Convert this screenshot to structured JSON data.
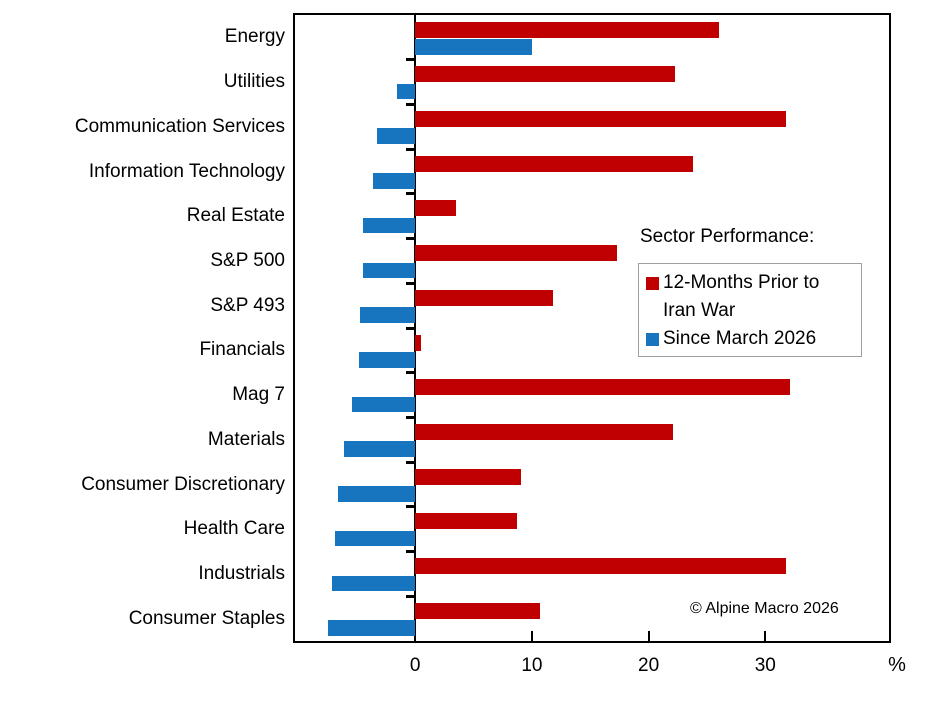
{
  "chart_data": {
    "type": "bar",
    "orientation": "horizontal",
    "categories": [
      "Energy",
      "Utilities",
      "Communication Services",
      "Information Technology",
      "Real Estate",
      "S&P 500",
      "S&P 493",
      "Financials",
      "Mag 7",
      "Materials",
      "Consumer Discretionary",
      "Health Care",
      "Industrials",
      "Consumer Staples"
    ],
    "series": [
      {
        "name": "12-Months Prior to Iran War",
        "color": "#C00000",
        "values": [
          26,
          22.3,
          31.8,
          23.8,
          3.5,
          17.3,
          11.8,
          0.5,
          32.1,
          22.1,
          9.1,
          8.7,
          31.8,
          10.7
        ]
      },
      {
        "name": "Since March 2026",
        "color": "#1774BE",
        "values": [
          10,
          -1.6,
          -3.3,
          -3.6,
          -4.5,
          -4.5,
          -4.7,
          -4.8,
          -5.4,
          -6.1,
          -6.6,
          -6.9,
          -7.1,
          -7.5
        ]
      }
    ],
    "xlim": [
      -10.3,
      40.6
    ],
    "xticks": [
      0,
      10,
      20,
      30
    ],
    "xunit": "%",
    "grid": false,
    "legend_title": "Sector Performance:",
    "legend_position": "middle-right",
    "annotation": "© Alpine Macro 2026"
  }
}
